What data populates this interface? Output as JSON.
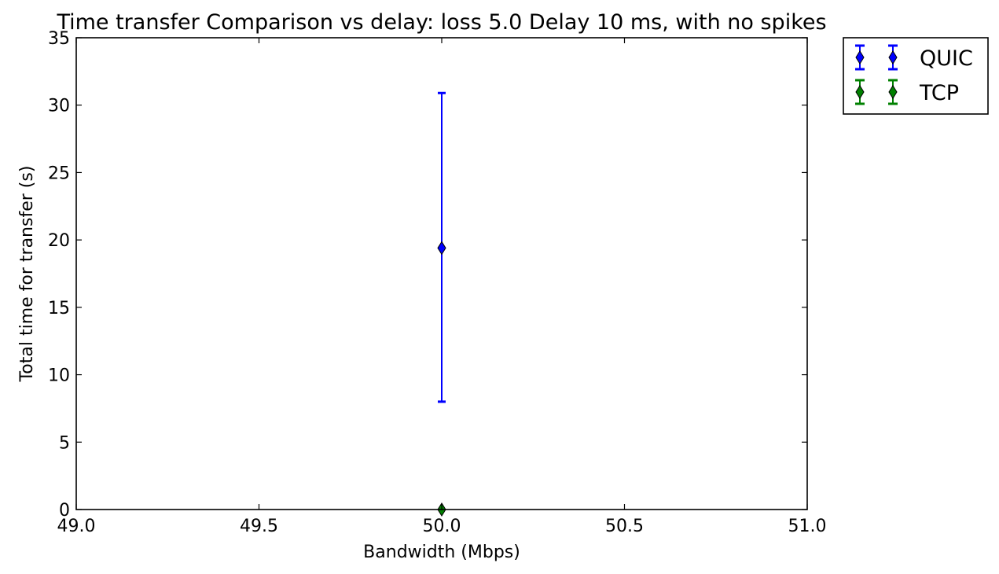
{
  "chart_data": {
    "type": "scatter",
    "title": "Time transfer Comparison vs delay: loss 5.0 Delay 10 ms, with no spikes",
    "xlabel": "Bandwidth (Mbps)",
    "ylabel": "Total time for transfer (s)",
    "xlim": [
      49.0,
      51.0
    ],
    "ylim": [
      0,
      35
    ],
    "x_ticks": [
      "49.0",
      "49.5",
      "50.0",
      "50.5",
      "51.0"
    ],
    "y_ticks": [
      "0",
      "5",
      "10",
      "15",
      "20",
      "25",
      "30",
      "35"
    ],
    "grid": false,
    "legend_position": "outside-top-right",
    "series": [
      {
        "name": "QUIC",
        "color": "#0000ff",
        "marker": "thin-diamond",
        "points": [
          {
            "x": 50.0,
            "y": 19.4,
            "y_lower": 8.0,
            "y_upper": 30.9
          }
        ]
      },
      {
        "name": "TCP",
        "color": "#008000",
        "marker": "thin-diamond",
        "points": [
          {
            "x": 50.0,
            "y": 0.0,
            "y_lower": 0.0,
            "y_upper": 0.0
          }
        ]
      }
    ]
  }
}
